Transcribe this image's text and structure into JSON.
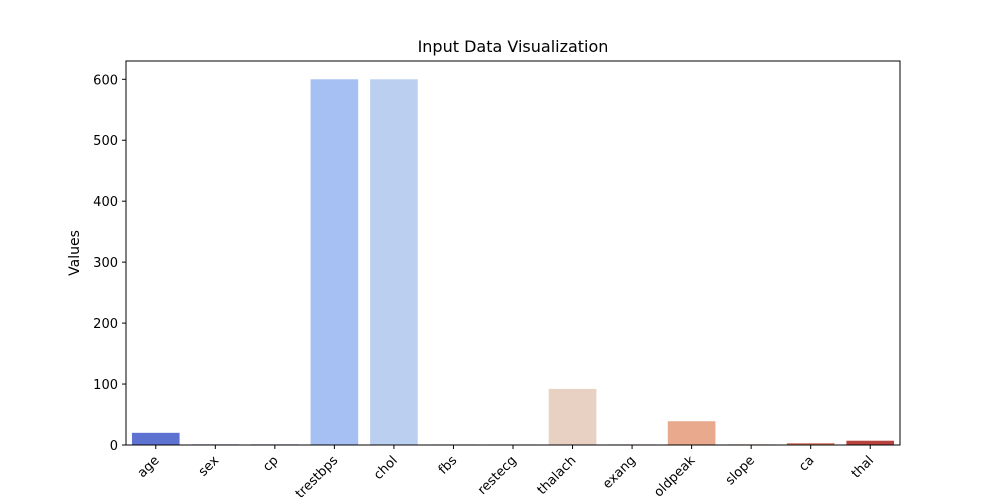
{
  "chart_data": {
    "type": "bar",
    "title": "Input Data Visualization",
    "xlabel": "",
    "ylabel": "Values",
    "ylim": [
      0,
      630
    ],
    "yticks": [
      0,
      100,
      200,
      300,
      400,
      500,
      600
    ],
    "grid": false,
    "legend": "none",
    "categories": [
      "age",
      "sex",
      "cp",
      "trestbps",
      "chol",
      "fbs",
      "restecg",
      "thalach",
      "exang",
      "oldpeak",
      "slope",
      "ca",
      "thal"
    ],
    "values": [
      20,
      1,
      1,
      600,
      600,
      1,
      1,
      92,
      1,
      39,
      1,
      3,
      7
    ],
    "colors": [
      "#5d72d1",
      "#4b5dc8",
      "#5a72db",
      "#a7c0f4",
      "#bbcff1",
      "#c9d7ef",
      "#dbdde0",
      "#e8d0c3",
      "#e7c0ae",
      "#e8a98c",
      "#e1957a",
      "#d47863",
      "#b8433e"
    ]
  }
}
